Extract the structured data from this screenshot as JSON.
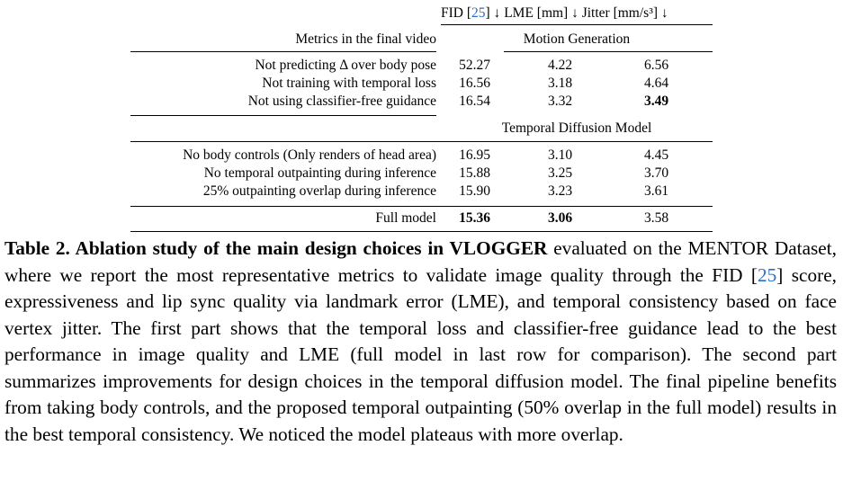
{
  "table": {
    "header": {
      "fid_prefix": "FID [",
      "fid_ref": "25",
      "fid_suffix": "] ↓",
      "lme": "LME [mm] ↓",
      "jitter": "Jitter [mm/s³] ↓"
    },
    "metrics_label": "Metrics in the final video",
    "section1": "Motion Generation",
    "rows1": [
      [
        "Not predicting Δ over body pose",
        "52.27",
        "4.22",
        "6.56"
      ],
      [
        "Not training with temporal loss",
        "16.56",
        "3.18",
        "4.64"
      ],
      [
        "Not using classifier-free guidance",
        "16.54",
        "3.32",
        "3.49"
      ]
    ],
    "section2": "Temporal Diffusion Model",
    "rows2": [
      [
        "No body controls (Only renders of head area)",
        "16.95",
        "3.10",
        "4.45"
      ],
      [
        "No temporal outpainting during inference",
        "15.88",
        "3.25",
        "3.70"
      ],
      [
        "25% outpainting overlap during inference",
        "15.90",
        "3.23",
        "3.61"
      ]
    ],
    "final_row": [
      "Full model",
      "15.36",
      "3.06",
      "3.58"
    ]
  },
  "caption": {
    "bold": "Table 2. Ablation study of the main design choices in VLOGGER",
    "text1": " evaluated on the MENTOR Dataset, where we report the most representative metrics to validate image quality through the FID [",
    "ref": "25",
    "text2": "] score, expressiveness and lip sync quality via landmark error (LME), and temporal consistency based on face vertex jitter. The first part shows that the temporal loss and classifier-free guidance lead to the best performance in image quality and LME (full model in last row for comparison). The second part summarizes improvements for design choices in the temporal diffusion model. The final pipeline benefits from taking body controls, and the proposed temporal outpainting (50% overlap in the full model) results in the best temporal consistency. We noticed the model plateaus with more overlap."
  }
}
